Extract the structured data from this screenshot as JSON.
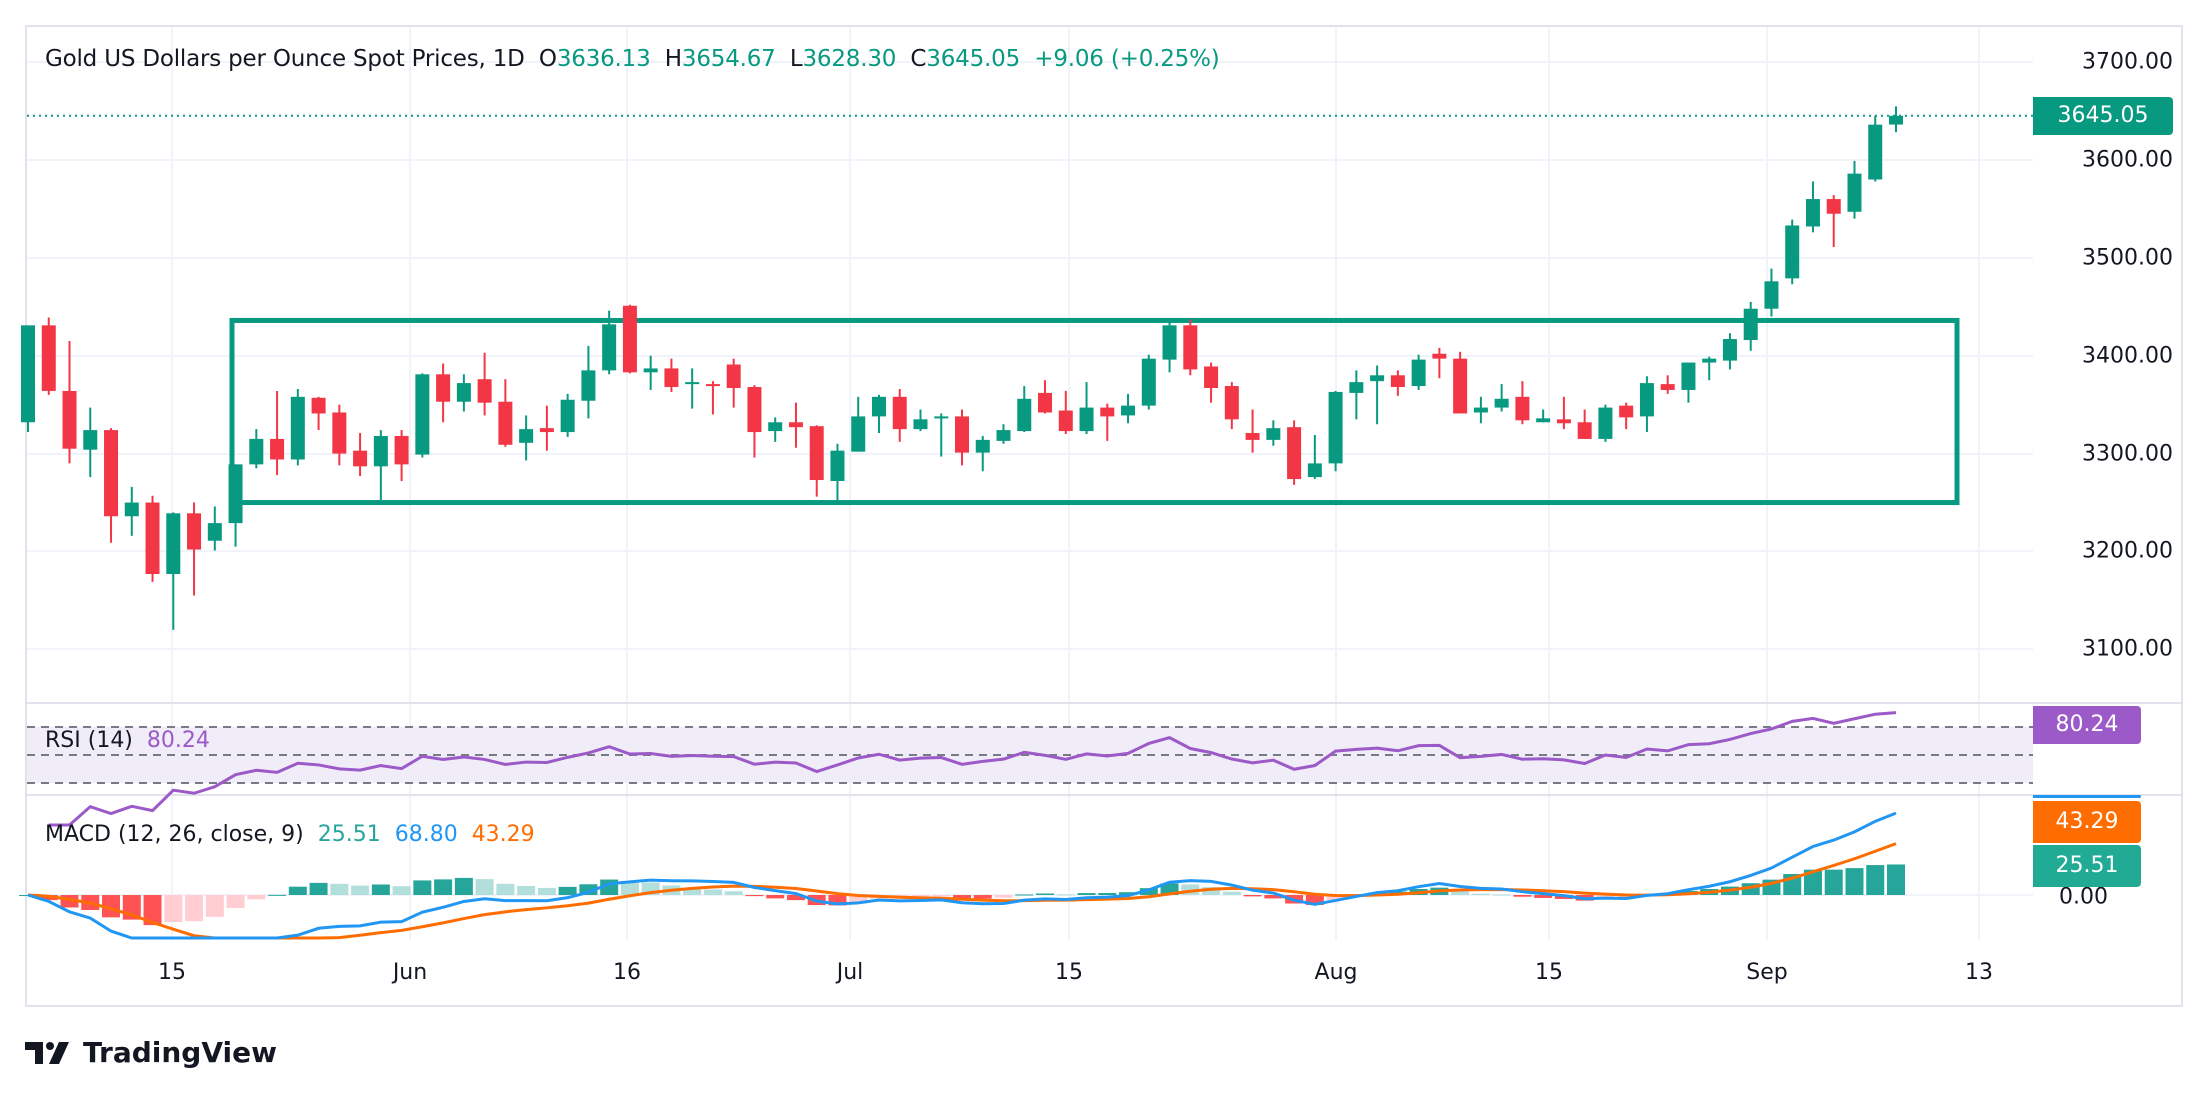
{
  "legend": {
    "title": "Gold US Dollars per Ounce Spot Prices, 1D",
    "o_label": "O",
    "o_value": "3636.13",
    "h_label": "H",
    "h_value": "3654.67",
    "l_label": "L",
    "l_value": "3628.30",
    "c_label": "C",
    "c_value": "3645.05",
    "change": "+9.06 (+0.25%)"
  },
  "rsi": {
    "label": "RSI (14)",
    "value": "80.24"
  },
  "macd": {
    "label": "MACD (12, 26, close, 9)",
    "histogram": "25.51",
    "macd": "68.80",
    "signal": "43.29"
  },
  "price_axis": [
    "3700.00",
    "3600.00",
    "3500.00",
    "3400.00",
    "3300.00",
    "3200.00",
    "3100.00"
  ],
  "macd_axis": "0.00",
  "tags": {
    "price": "3645.05",
    "rsi": "80.24",
    "signal": "43.29",
    "histogram": "25.51"
  },
  "x_axis": [
    "15",
    "Jun",
    "16",
    "Jul",
    "15",
    "Aug",
    "15",
    "Sep",
    "13"
  ],
  "logo": "TradingView",
  "colors": {
    "up": "#089981",
    "down": "#F23645",
    "rsi": "#9C59C8",
    "macd": "#2196F3",
    "signal": "#FF6D00",
    "hist_up": "#26A69A",
    "hist_up_light": "#B2DFDB",
    "hist_down": "#FF5252",
    "hist_down_light": "#FFCDD2"
  },
  "chart_data": {
    "type": "candlestick",
    "title": "Gold US Dollars per Ounce Spot Prices, 1D",
    "ylim": [
      3060,
      3720
    ],
    "columns": [
      "open",
      "high",
      "low",
      "close"
    ],
    "ohlc": [
      [
        3332,
        3431,
        3322,
        3431
      ],
      [
        3431,
        3439,
        3360,
        3364
      ],
      [
        3364,
        3415,
        3290,
        3305
      ],
      [
        3304,
        3347,
        3276,
        3324
      ],
      [
        3324,
        3326,
        3209,
        3236
      ],
      [
        3236,
        3266,
        3216,
        3250
      ],
      [
        3250,
        3257,
        3169,
        3177
      ],
      [
        3177,
        3240,
        3120,
        3239
      ],
      [
        3239,
        3250,
        3155,
        3202
      ],
      [
        3211,
        3246,
        3201,
        3229
      ],
      [
        3229,
        3289,
        3205,
        3289
      ],
      [
        3289,
        3325,
        3285,
        3315
      ],
      [
        3315,
        3364,
        3278,
        3294
      ],
      [
        3294,
        3366,
        3288,
        3358
      ],
      [
        3357,
        3358,
        3324,
        3341
      ],
      [
        3342,
        3350,
        3288,
        3300
      ],
      [
        3303,
        3321,
        3277,
        3287
      ],
      [
        3287,
        3324,
        3250,
        3318
      ],
      [
        3318,
        3324,
        3272,
        3289
      ],
      [
        3299,
        3382,
        3296,
        3381
      ],
      [
        3381,
        3392,
        3332,
        3353
      ],
      [
        3353,
        3381,
        3343,
        3372
      ],
      [
        3376,
        3403,
        3339,
        3352
      ],
      [
        3353,
        3376,
        3307,
        3309
      ],
      [
        3311,
        3339,
        3293,
        3325
      ],
      [
        3326,
        3349,
        3303,
        3322
      ],
      [
        3322,
        3361,
        3317,
        3355
      ],
      [
        3354,
        3410,
        3336,
        3385
      ],
      [
        3385,
        3446,
        3381,
        3432
      ],
      [
        3451,
        3452,
        3382,
        3383
      ],
      [
        3383,
        3400,
        3365,
        3387
      ],
      [
        3387,
        3397,
        3363,
        3368
      ],
      [
        3371,
        3387,
        3346,
        3373
      ],
      [
        3371,
        3374,
        3340,
        3369
      ],
      [
        3391,
        3397,
        3347,
        3367
      ],
      [
        3368,
        3370,
        3296,
        3322
      ],
      [
        3323,
        3337,
        3312,
        3332
      ],
      [
        3332,
        3352,
        3306,
        3327
      ],
      [
        3328,
        3329,
        3256,
        3273
      ],
      [
        3272,
        3310,
        3248,
        3303
      ],
      [
        3302,
        3358,
        3302,
        3338
      ],
      [
        3338,
        3360,
        3321,
        3358
      ],
      [
        3358,
        3366,
        3312,
        3325
      ],
      [
        3325,
        3345,
        3323,
        3335
      ],
      [
        3336,
        3341,
        3297,
        3338
      ],
      [
        3338,
        3345,
        3288,
        3301
      ],
      [
        3301,
        3318,
        3282,
        3314
      ],
      [
        3313,
        3330,
        3310,
        3324
      ],
      [
        3323,
        3369,
        3322,
        3356
      ],
      [
        3362,
        3375,
        3341,
        3342
      ],
      [
        3344,
        3364,
        3320,
        3323
      ],
      [
        3323,
        3373,
        3320,
        3347
      ],
      [
        3347,
        3351,
        3313,
        3338
      ],
      [
        3339,
        3361,
        3331,
        3349
      ],
      [
        3349,
        3401,
        3345,
        3397
      ],
      [
        3396,
        3435,
        3383,
        3431
      ],
      [
        3431,
        3437,
        3380,
        3386
      ],
      [
        3389,
        3393,
        3352,
        3367
      ],
      [
        3369,
        3373,
        3325,
        3335
      ],
      [
        3321,
        3345,
        3301,
        3314
      ],
      [
        3314,
        3334,
        3308,
        3326
      ],
      [
        3327,
        3334,
        3268,
        3274
      ],
      [
        3276,
        3319,
        3274,
        3290
      ],
      [
        3290,
        3364,
        3282,
        3363
      ],
      [
        3362,
        3385,
        3335,
        3373
      ],
      [
        3374,
        3390,
        3330,
        3380
      ],
      [
        3380,
        3385,
        3359,
        3368
      ],
      [
        3369,
        3401,
        3365,
        3396
      ],
      [
        3402,
        3408,
        3377,
        3397
      ],
      [
        3397,
        3404,
        3341,
        3341
      ],
      [
        3342,
        3358,
        3331,
        3347
      ],
      [
        3347,
        3371,
        3343,
        3356
      ],
      [
        3358,
        3374,
        3330,
        3334
      ],
      [
        3332,
        3345,
        3332,
        3336
      ],
      [
        3335,
        3358,
        3325,
        3331
      ],
      [
        3332,
        3345,
        3315,
        3315
      ],
      [
        3315,
        3350,
        3312,
        3347
      ],
      [
        3349,
        3352,
        3325,
        3337
      ],
      [
        3338,
        3379,
        3322,
        3372
      ],
      [
        3371,
        3380,
        3361,
        3365
      ],
      [
        3365,
        3393,
        3352,
        3393
      ],
      [
        3393,
        3399,
        3375,
        3397
      ],
      [
        3395,
        3423,
        3386,
        3417
      ],
      [
        3416,
        3455,
        3405,
        3448
      ],
      [
        3448,
        3489,
        3440,
        3476
      ],
      [
        3479,
        3539,
        3473,
        3533
      ],
      [
        3532,
        3578,
        3526,
        3560
      ],
      [
        3560,
        3564,
        3511,
        3545
      ],
      [
        3547,
        3599,
        3540,
        3586
      ],
      [
        3580,
        3645,
        3578,
        3636
      ],
      [
        3636.13,
        3654.67,
        3628.3,
        3645.05
      ]
    ],
    "range_box": {
      "top": 3436,
      "bottom": 3250
    },
    "last_price": 3645.05,
    "rsi_levels": [
      70,
      50,
      30
    ],
    "indicators": {
      "rsi_period": 14,
      "macd_fast": 12,
      "macd_slow": 26,
      "macd_signal": 9
    }
  }
}
